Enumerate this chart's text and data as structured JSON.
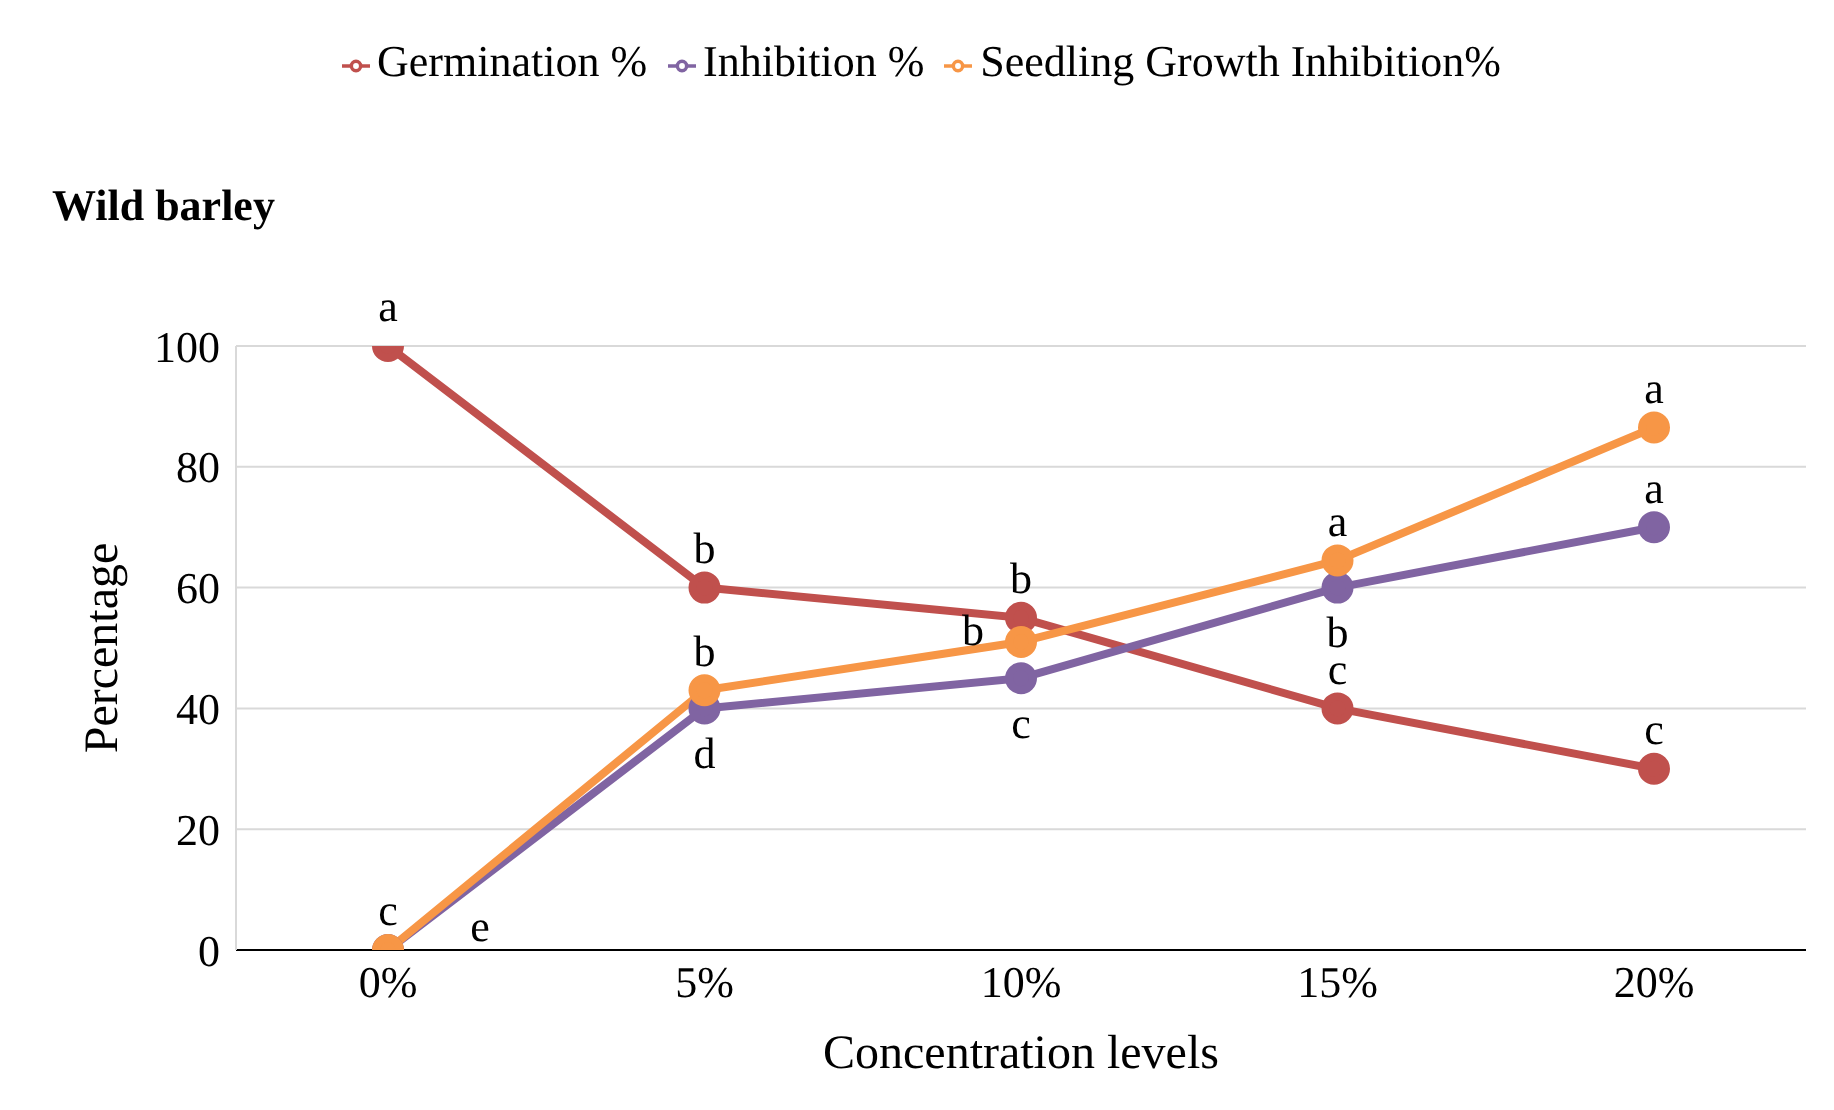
{
  "chart_data": {
    "type": "line",
    "title": "Wild barley",
    "xlabel": "Concentration levels",
    "ylabel": "Percentage",
    "categories": [
      "0%",
      "5%",
      "10%",
      "15%",
      "20%"
    ],
    "series": [
      {
        "name": "Germination %",
        "color": "#c0504d",
        "values": [
          100,
          60,
          55,
          40,
          30
        ]
      },
      {
        "name": "Inhibition %",
        "color": "#8064a2",
        "values": [
          0,
          40,
          45,
          60,
          70
        ]
      },
      {
        "name": "Seedling Growth Inhibition%",
        "color": "#f79646",
        "values": [
          0,
          43,
          51,
          64.5,
          86.5
        ]
      }
    ],
    "ylim": [
      0,
      100
    ],
    "yticks": [
      0,
      20,
      40,
      60,
      80,
      100
    ],
    "grid": "y",
    "legend": "top",
    "marker": "circle",
    "line_style": "solid",
    "annotations": [
      {
        "text": "a",
        "x": "0%",
        "y": 100
      },
      {
        "text": "b",
        "x": "5%",
        "y": 60
      },
      {
        "text": "b",
        "x": "10%",
        "y": 55
      },
      {
        "text": "c",
        "x": "15%",
        "y": 40
      },
      {
        "text": "c",
        "x": "20%",
        "y": 30
      },
      {
        "text": "c",
        "x": "0%",
        "y": 0
      },
      {
        "text": "e",
        "x": "0%",
        "y": 0
      },
      {
        "text": "b",
        "x": "5%",
        "y": 43
      },
      {
        "text": "d",
        "x": "5%",
        "y": 40
      },
      {
        "text": "b",
        "x": "10%",
        "y": 51
      },
      {
        "text": "c",
        "x": "10%",
        "y": 45
      },
      {
        "text": "a",
        "x": "15%",
        "y": 64.5
      },
      {
        "text": "b",
        "x": "15%",
        "y": 60
      },
      {
        "text": "a",
        "x": "20%",
        "y": 86.5
      },
      {
        "text": "a",
        "x": "20%",
        "y": 70
      }
    ]
  }
}
